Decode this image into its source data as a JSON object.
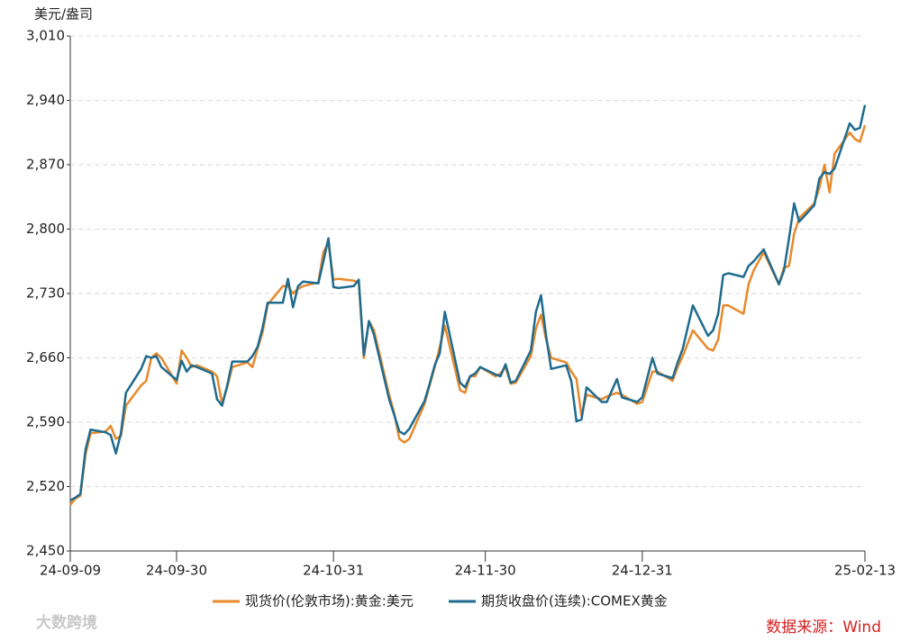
{
  "chart_data": {
    "type": "line",
    "y_unit": "美元/盎司",
    "source": "数据来源：Wind",
    "watermark": "大数跨境",
    "x": [
      "24-09-09",
      "24-09-10",
      "24-09-11",
      "24-09-12",
      "24-09-13",
      "24-09-16",
      "24-09-17",
      "24-09-18",
      "24-09-19",
      "24-09-20",
      "24-09-23",
      "24-09-24",
      "24-09-25",
      "24-09-26",
      "24-09-27",
      "24-09-30",
      "24-10-01",
      "24-10-02",
      "24-10-03",
      "24-10-04",
      "24-10-07",
      "24-10-08",
      "24-10-09",
      "24-10-10",
      "24-10-11",
      "24-10-14",
      "24-10-15",
      "24-10-16",
      "24-10-17",
      "24-10-18",
      "24-10-21",
      "24-10-22",
      "24-10-23",
      "24-10-24",
      "24-10-25",
      "24-10-28",
      "24-10-29",
      "24-10-30",
      "24-10-31",
      "24-11-01",
      "24-11-04",
      "24-11-05",
      "24-11-06",
      "24-11-07",
      "24-11-08",
      "24-11-11",
      "24-11-12",
      "24-11-13",
      "24-11-14",
      "24-11-15",
      "24-11-18",
      "24-11-19",
      "24-11-20",
      "24-11-21",
      "24-11-22",
      "24-11-25",
      "24-11-26",
      "24-11-27",
      "24-11-28",
      "24-11-29",
      "24-12-02",
      "24-12-03",
      "24-12-04",
      "24-12-05",
      "24-12-06",
      "24-12-09",
      "24-12-10",
      "24-12-11",
      "24-12-12",
      "24-12-13",
      "24-12-16",
      "24-12-17",
      "24-12-18",
      "24-12-19",
      "24-12-20",
      "24-12-23",
      "24-12-24",
      "24-12-26",
      "24-12-27",
      "24-12-30",
      "24-12-31",
      "25-01-02",
      "25-01-03",
      "25-01-06",
      "25-01-07",
      "25-01-08",
      "25-01-10",
      "25-01-13",
      "25-01-14",
      "25-01-15",
      "25-01-16",
      "25-01-17",
      "25-01-20",
      "25-01-21",
      "25-01-22",
      "25-01-24",
      "25-01-27",
      "25-01-28",
      "25-01-29",
      "25-01-30",
      "25-01-31",
      "25-02-03",
      "25-02-04",
      "25-02-05",
      "25-02-06",
      "25-02-07",
      "25-02-10",
      "25-02-11",
      "25-02-12",
      "25-02-13"
    ],
    "series": [
      {
        "name": "现货价(伦敦市场):黄金:美元",
        "color": "#e8892b",
        "values": [
          2500,
          2507,
          2510,
          2555,
          2578,
          2580,
          2586,
          2572,
          2575,
          2608,
          2630,
          2635,
          2660,
          2665,
          2660,
          2632,
          2668,
          2660,
          2650,
          2652,
          2645,
          2640,
          2610,
          2628,
          2650,
          2655,
          2650,
          2670,
          2688,
          2718,
          2738,
          2738,
          2730,
          2735,
          2738,
          2742,
          2775,
          2785,
          2745,
          2746,
          2744,
          2742,
          2660,
          2700,
          2690,
          2620,
          2600,
          2572,
          2568,
          2572,
          2610,
          2630,
          2650,
          2672,
          2695,
          2625,
          2622,
          2640,
          2640,
          2650,
          2640,
          2643,
          2650,
          2632,
          2633,
          2662,
          2692,
          2707,
          2680,
          2660,
          2655,
          2645,
          2637,
          2597,
          2620,
          2615,
          2618,
          2622,
          2620,
          2610,
          2612,
          2645,
          2645,
          2635,
          2650,
          2662,
          2690,
          2670,
          2668,
          2680,
          2717,
          2717,
          2708,
          2740,
          2755,
          2775,
          2740,
          2758,
          2760,
          2795,
          2812,
          2828,
          2845,
          2870,
          2840,
          2882,
          2905,
          2898,
          2895,
          2913
        ]
      },
      {
        "name": "期货收盘价(连续):COMEX黄金",
        "color": "#1f6b8e",
        "values": [
          2505,
          2508,
          2512,
          2560,
          2582,
          2579,
          2576,
          2556,
          2578,
          2622,
          2648,
          2662,
          2660,
          2662,
          2650,
          2636,
          2657,
          2645,
          2652,
          2650,
          2643,
          2615,
          2608,
          2630,
          2656,
          2656,
          2662,
          2672,
          2693,
          2720,
          2720,
          2746,
          2715,
          2738,
          2743,
          2741,
          2765,
          2790,
          2737,
          2736,
          2738,
          2745,
          2663,
          2700,
          2685,
          2615,
          2598,
          2580,
          2577,
          2583,
          2613,
          2632,
          2652,
          2665,
          2710,
          2633,
          2628,
          2640,
          2643,
          2650,
          2642,
          2640,
          2653,
          2633,
          2635,
          2668,
          2710,
          2728,
          2684,
          2648,
          2652,
          2634,
          2591,
          2593,
          2628,
          2612,
          2612,
          2637,
          2617,
          2612,
          2617,
          2660,
          2643,
          2638,
          2655,
          2670,
          2717,
          2684,
          2690,
          2708,
          2750,
          2752,
          2748,
          2760,
          2765,
          2778,
          2740,
          2755,
          2790,
          2828,
          2808,
          2826,
          2855,
          2862,
          2860,
          2866,
          2915,
          2908,
          2910,
          2935
        ]
      }
    ],
    "xlim": [
      "24-09-09",
      "25-02-13"
    ],
    "xticks": [
      "24-09-09",
      "24-09-30",
      "24-10-31",
      "24-11-30",
      "24-12-31",
      "25-02-13"
    ],
    "ylim": [
      2450,
      3010
    ],
    "yticks": [
      {
        "value": 2450,
        "label": "2,450"
      },
      {
        "value": 2520,
        "label": "2,520"
      },
      {
        "value": 2590,
        "label": "2,590"
      },
      {
        "value": 2660,
        "label": "2,660"
      },
      {
        "value": 2730,
        "label": "2,730"
      },
      {
        "value": 2800,
        "label": "2,800"
      },
      {
        "value": 2870,
        "label": "2,870"
      },
      {
        "value": 2940,
        "label": "2,940"
      },
      {
        "value": 3010,
        "label": "3,010"
      }
    ],
    "grid": true
  }
}
